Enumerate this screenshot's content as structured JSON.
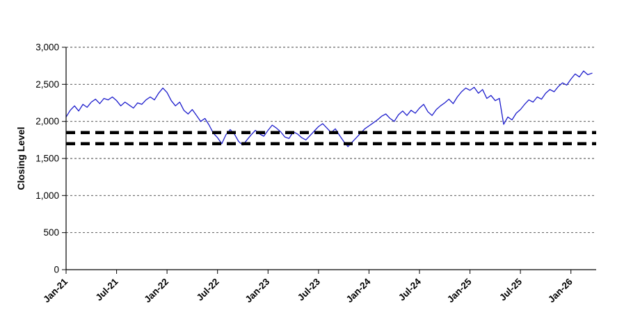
{
  "chart_data": {
    "type": "line",
    "title": "",
    "xlabel": "",
    "ylabel": "Closing Level",
    "ylim": [
      0,
      3000
    ],
    "xlim": [
      0,
      63
    ],
    "yticks": [
      0,
      500,
      1000,
      1500,
      2000,
      2500,
      3000
    ],
    "xtick_labels": [
      "Jan-21",
      "Jul-21",
      "Jan-22",
      "Jul-22",
      "Jan-23",
      "Jul-23",
      "Jan-24",
      "Jul-24",
      "Jan-25",
      "Jul-25",
      "Jan-26"
    ],
    "xtick_positions": [
      0,
      6,
      12,
      18,
      24,
      30,
      36,
      42,
      48,
      54,
      60
    ],
    "grid": "horizontal-dashed",
    "legend": "none",
    "colors": {
      "series": "#1c1ccc",
      "reference": "#000000",
      "axis": "#000000",
      "gridline": "#404040"
    },
    "series": [
      {
        "name": "Closing Level",
        "color": "#1c1ccc",
        "x_unit": "months-since-Jan-21",
        "x_start": 0,
        "x_step": 0.5,
        "values": [
          2060,
          2150,
          2210,
          2140,
          2230,
          2190,
          2260,
          2300,
          2240,
          2310,
          2290,
          2330,
          2280,
          2210,
          2260,
          2220,
          2180,
          2250,
          2230,
          2290,
          2330,
          2290,
          2380,
          2450,
          2390,
          2280,
          2210,
          2260,
          2150,
          2100,
          2160,
          2080,
          2000,
          2040,
          1950,
          1840,
          1780,
          1700,
          1820,
          1890,
          1830,
          1730,
          1680,
          1750,
          1820,
          1880,
          1830,
          1800,
          1880,
          1950,
          1910,
          1860,
          1790,
          1770,
          1860,
          1830,
          1780,
          1750,
          1810,
          1870,
          1930,
          1970,
          1910,
          1850,
          1900,
          1810,
          1730,
          1660,
          1720,
          1780,
          1840,
          1900,
          1940,
          1980,
          2020,
          2070,
          2100,
          2040,
          2000,
          2090,
          2140,
          2080,
          2150,
          2110,
          2180,
          2230,
          2130,
          2080,
          2160,
          2210,
          2250,
          2300,
          2240,
          2330,
          2400,
          2450,
          2420,
          2460,
          2380,
          2430,
          2310,
          2350,
          2280,
          2310,
          1960,
          2060,
          2020,
          2110,
          2160,
          2230,
          2290,
          2260,
          2330,
          2300,
          2380,
          2430,
          2400,
          2470,
          2520,
          2490,
          2570,
          2640,
          2600,
          2680,
          2630,
          2650
        ]
      }
    ],
    "reference_lines": [
      {
        "value": 1850,
        "color": "#000000",
        "style": "dashed"
      },
      {
        "value": 1700,
        "color": "#000000",
        "style": "dashed"
      }
    ]
  }
}
